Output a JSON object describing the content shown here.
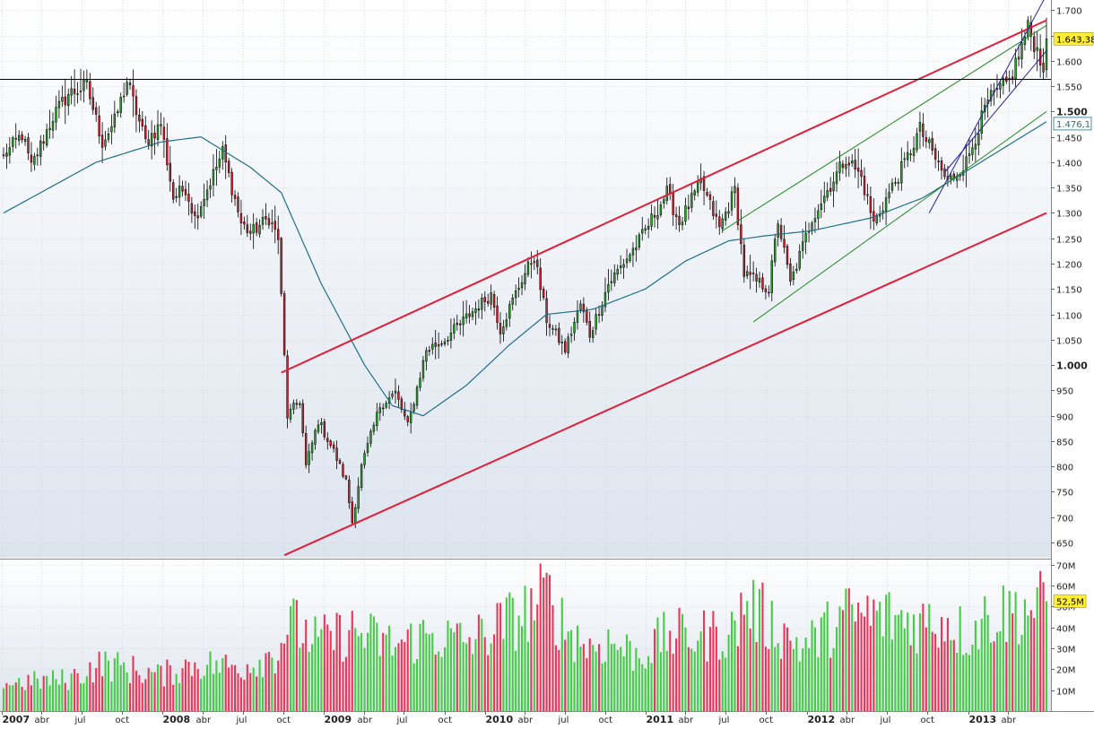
{
  "chart_data": [
    {
      "type": "candlestick",
      "panel": "price",
      "x_range": [
        "2007-01-01",
        "2013-06-30"
      ],
      "ylim": [
        620,
        1720
      ],
      "y_ticks": [
        "650",
        "700",
        "750",
        "800",
        "850",
        "900",
        "950",
        "1.000",
        "1.050",
        "1.100",
        "1.150",
        "1.200",
        "1.250",
        "1.300",
        "1.350",
        "1.400",
        "1.450",
        "1.500",
        "1.550",
        "1.600",
        "1.650",
        "1.700"
      ],
      "y_tick_values": [
        650,
        700,
        750,
        800,
        850,
        900,
        950,
        1000,
        1050,
        1100,
        1150,
        1200,
        1250,
        1300,
        1350,
        1400,
        1450,
        1500,
        1550,
        1600,
        1650,
        1700
      ],
      "bold_ticks": [
        "1.000",
        "1.500"
      ],
      "last_price_label": "1.643,38",
      "last_price": 1643.38,
      "ma_label": "1.476,1",
      "ma_value": 1476.1,
      "close_points": [
        [
          "2007-01-05",
          1410
        ],
        [
          "2007-02-16",
          1455
        ],
        [
          "2007-03-09",
          1390
        ],
        [
          "2007-04-27",
          1490
        ],
        [
          "2007-06-01",
          1535
        ],
        [
          "2007-07-13",
          1550
        ],
        [
          "2007-08-17",
          1440
        ],
        [
          "2007-09-14",
          1480
        ],
        [
          "2007-10-12",
          1560
        ],
        [
          "2007-11-23",
          1440
        ],
        [
          "2007-12-28",
          1475
        ],
        [
          "2008-01-25",
          1330
        ],
        [
          "2008-02-22",
          1350
        ],
        [
          "2008-03-14",
          1290
        ],
        [
          "2008-05-16",
          1420
        ],
        [
          "2008-06-27",
          1280
        ],
        [
          "2008-07-18",
          1260
        ],
        [
          "2008-08-29",
          1290
        ],
        [
          "2008-09-19",
          1250
        ],
        [
          "2008-10-10",
          900
        ],
        [
          "2008-11-07",
          930
        ],
        [
          "2008-11-21",
          800
        ],
        [
          "2008-12-19",
          890
        ],
        [
          "2009-01-23",
          830
        ],
        [
          "2009-02-20",
          770
        ],
        [
          "2009-03-06",
          690
        ],
        [
          "2009-03-27",
          800
        ],
        [
          "2009-05-08",
          920
        ],
        [
          "2009-06-12",
          945
        ],
        [
          "2009-07-10",
          880
        ],
        [
          "2009-08-21",
          1030
        ],
        [
          "2009-10-02",
          1050
        ],
        [
          "2009-11-27",
          1100
        ],
        [
          "2010-01-15",
          1140
        ],
        [
          "2010-02-05",
          1070
        ],
        [
          "2010-03-26",
          1170
        ],
        [
          "2010-04-23",
          1215
        ],
        [
          "2010-05-21",
          1090
        ],
        [
          "2010-07-02",
          1030
        ],
        [
          "2010-08-06",
          1120
        ],
        [
          "2010-08-27",
          1060
        ],
        [
          "2010-10-08",
          1160
        ],
        [
          "2010-12-17",
          1245
        ],
        [
          "2011-02-18",
          1340
        ],
        [
          "2011-03-18",
          1280
        ],
        [
          "2011-05-06",
          1360
        ],
        [
          "2011-06-17",
          1270
        ],
        [
          "2011-07-22",
          1345
        ],
        [
          "2011-08-12",
          1180
        ],
        [
          "2011-10-07",
          1150
        ],
        [
          "2011-10-28",
          1285
        ],
        [
          "2011-11-25",
          1160
        ],
        [
          "2012-01-13",
          1290
        ],
        [
          "2012-03-30",
          1410
        ],
        [
          "2012-05-04",
          1370
        ],
        [
          "2012-06-01",
          1280
        ],
        [
          "2012-08-17",
          1410
        ],
        [
          "2012-09-14",
          1465
        ],
        [
          "2012-11-16",
          1360
        ],
        [
          "2012-12-28",
          1400
        ],
        [
          "2013-02-15",
          1520
        ],
        [
          "2013-04-05",
          1560
        ],
        [
          "2013-05-17",
          1665
        ],
        [
          "2013-06-21",
          1590
        ]
      ],
      "ma_points": [
        [
          "2007-01-05",
          1300
        ],
        [
          "2007-08-03",
          1400
        ],
        [
          "2007-12-28",
          1440
        ],
        [
          "2008-03-28",
          1450
        ],
        [
          "2008-07-18",
          1390
        ],
        [
          "2008-09-26",
          1340
        ],
        [
          "2008-12-26",
          1160
        ],
        [
          "2009-04-03",
          1000
        ],
        [
          "2009-06-05",
          920
        ],
        [
          "2009-08-14",
          900
        ],
        [
          "2009-11-20",
          960
        ],
        [
          "2010-02-26",
          1040
        ],
        [
          "2010-05-21",
          1100
        ],
        [
          "2010-09-03",
          1110
        ],
        [
          "2010-12-31",
          1150
        ],
        [
          "2011-04-01",
          1205
        ],
        [
          "2011-07-08",
          1245
        ],
        [
          "2011-09-30",
          1255
        ],
        [
          "2012-01-13",
          1265
        ],
        [
          "2012-05-25",
          1290
        ],
        [
          "2012-09-21",
          1330
        ],
        [
          "2013-01-11",
          1390
        ],
        [
          "2013-06-28",
          1480
        ]
      ],
      "trend_lines": [
        {
          "color": "#e0203a",
          "from": [
            "2008-09-26",
            985
          ],
          "to": [
            "2013-06-28",
            1680
          ]
        },
        {
          "color": "#e0203a",
          "from": [
            "2008-10-03",
            625
          ],
          "to": [
            "2013-06-28",
            1300
          ]
        },
        {
          "color": "#228b22",
          "from": [
            "2011-06-24",
            1265
          ],
          "to": [
            "2013-06-28",
            1670
          ]
        },
        {
          "color": "#228b22",
          "from": [
            "2011-09-02",
            1085
          ],
          "to": [
            "2013-06-28",
            1500
          ]
        },
        {
          "color": "#2424a0",
          "from": [
            "2012-10-05",
            1300
          ],
          "to": [
            "2013-06-28",
            1730
          ]
        },
        {
          "color": "#2424a0",
          "from": [
            "2012-11-09",
            1380
          ],
          "to": [
            "2013-06-28",
            1620
          ]
        }
      ],
      "h_line": {
        "color": "#000000",
        "value": 1565
      }
    },
    {
      "type": "bar",
      "panel": "volume",
      "ylim": [
        0,
        72
      ],
      "y_ticks": [
        "10M",
        "20M",
        "30M",
        "40M",
        "50M",
        "60M",
        "70M"
      ],
      "y_tick_values": [
        10,
        20,
        30,
        40,
        50,
        60,
        70
      ],
      "last_volume_label": "52,5M",
      "last_volume": 52.5,
      "colors": {
        "up": "#44cc44",
        "down": "#ee3355"
      },
      "volume_points": [
        [
          "2007-01-05",
          14
        ],
        [
          "2007-06-01",
          16
        ],
        [
          "2007-08-17",
          24
        ],
        [
          "2007-12-28",
          18
        ],
        [
          "2008-03-14",
          24
        ],
        [
          "2008-06-27",
          22
        ],
        [
          "2008-09-19",
          30
        ],
        [
          "2008-10-10",
          45
        ],
        [
          "2008-12-19",
          35
        ],
        [
          "2009-03-06",
          40
        ],
        [
          "2009-06-12",
          33
        ],
        [
          "2009-08-21",
          38
        ],
        [
          "2009-11-27",
          35
        ],
        [
          "2010-02-05",
          43
        ],
        [
          "2010-04-23",
          52
        ],
        [
          "2010-05-21",
          58
        ],
        [
          "2010-07-02",
          42
        ],
        [
          "2010-08-27",
          32
        ],
        [
          "2010-10-08",
          35
        ],
        [
          "2010-12-17",
          28
        ],
        [
          "2011-02-18",
          38
        ],
        [
          "2011-05-06",
          38
        ],
        [
          "2011-07-22",
          40
        ],
        [
          "2011-08-12",
          55
        ],
        [
          "2011-10-07",
          45
        ],
        [
          "2011-12-23",
          32
        ],
        [
          "2012-03-30",
          48
        ],
        [
          "2012-06-01",
          48
        ],
        [
          "2012-09-14",
          45
        ],
        [
          "2012-11-16",
          46
        ],
        [
          "2012-12-28",
          38
        ],
        [
          "2013-02-15",
          48
        ],
        [
          "2013-05-17",
          52
        ],
        [
          "2013-06-28",
          52
        ]
      ]
    }
  ],
  "x_axis": {
    "labels": [
      {
        "text": "2007",
        "date": "2007-01-01",
        "bold": true
      },
      {
        "text": "abr",
        "date": "2007-04-01",
        "bold": false
      },
      {
        "text": "jul",
        "date": "2007-07-01",
        "bold": false
      },
      {
        "text": "oct",
        "date": "2007-10-01",
        "bold": false
      },
      {
        "text": "2008",
        "date": "2008-01-01",
        "bold": true
      },
      {
        "text": "abr",
        "date": "2008-04-01",
        "bold": false
      },
      {
        "text": "jul",
        "date": "2008-07-01",
        "bold": false
      },
      {
        "text": "oct",
        "date": "2008-10-01",
        "bold": false
      },
      {
        "text": "2009",
        "date": "2009-01-01",
        "bold": true
      },
      {
        "text": "abr",
        "date": "2009-04-01",
        "bold": false
      },
      {
        "text": "jul",
        "date": "2009-07-01",
        "bold": false
      },
      {
        "text": "oct",
        "date": "2009-10-01",
        "bold": false
      },
      {
        "text": "2010",
        "date": "2010-01-01",
        "bold": true
      },
      {
        "text": "abr",
        "date": "2010-04-01",
        "bold": false
      },
      {
        "text": "jul",
        "date": "2010-07-01",
        "bold": false
      },
      {
        "text": "oct",
        "date": "2010-10-01",
        "bold": false
      },
      {
        "text": "2011",
        "date": "2011-01-01",
        "bold": true
      },
      {
        "text": "abr",
        "date": "2011-04-01",
        "bold": false
      },
      {
        "text": "jul",
        "date": "2011-07-01",
        "bold": false
      },
      {
        "text": "oct",
        "date": "2011-10-01",
        "bold": false
      },
      {
        "text": "2012",
        "date": "2012-01-01",
        "bold": true
      },
      {
        "text": "abr",
        "date": "2012-04-01",
        "bold": false
      },
      {
        "text": "jul",
        "date": "2012-07-01",
        "bold": false
      },
      {
        "text": "oct",
        "date": "2012-10-01",
        "bold": false
      },
      {
        "text": "2013",
        "date": "2013-01-01",
        "bold": true
      },
      {
        "text": "abr",
        "date": "2013-04-01",
        "bold": false
      }
    ]
  },
  "colors": {
    "background_top": "#ffffff",
    "background_bottom": "#dde4ee",
    "grid": "#c4ccd8",
    "candle_up": "#2ea02e",
    "candle_down": "#d02030",
    "ma": "#1f6f8b",
    "price_badge": "#ffee33",
    "ma_badge": "#ffffff"
  }
}
